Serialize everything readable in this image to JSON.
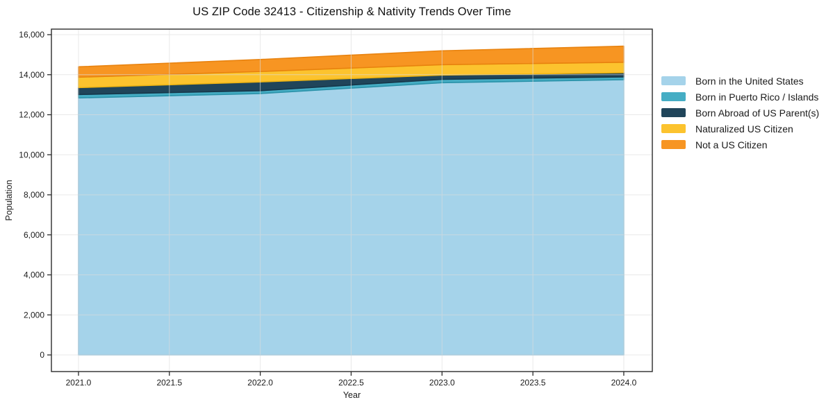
{
  "chart_data": {
    "type": "area",
    "stacked": true,
    "title": "US ZIP Code 32413 - Citizenship & Nativity Trends Over Time",
    "xlabel": "Year",
    "ylabel": "Population",
    "x": [
      2021,
      2022,
      2023,
      2024
    ],
    "series": [
      {
        "name": "Born in the United States",
        "values": [
          12840,
          13060,
          13600,
          13750
        ],
        "fill": "#a5d3ea",
        "edge": "#8ac1dc"
      },
      {
        "name": "Born in Puerto Rico / Islands",
        "values": [
          170,
          140,
          170,
          140
        ],
        "fill": "#45adc4",
        "edge": "#2a92a9"
      },
      {
        "name": "Born Abroad of US Parent(s)",
        "values": [
          345,
          440,
          210,
          210
        ],
        "fill": "#20455a",
        "edge": "#16374a"
      },
      {
        "name": "Naturalized US Citizen",
        "values": [
          520,
          520,
          520,
          520
        ],
        "fill": "#fcc32e",
        "edge": "#eeb413"
      },
      {
        "name": "Not a US Citizen",
        "values": [
          520,
          600,
          695,
          805
        ],
        "fill": "#f79522",
        "edge": "#e8820e"
      }
    ],
    "xlim": [
      2020.851,
      2024.157
    ],
    "ylim": [
      -831,
      16277
    ],
    "xticks": {
      "values": [
        2021.0,
        2021.5,
        2022.0,
        2022.5,
        2023.0,
        2023.5,
        2024.0
      ],
      "labels": [
        "2021.0",
        "2021.5",
        "2022.0",
        "2022.5",
        "2023.0",
        "2023.5",
        "2024.0"
      ]
    },
    "yticks": {
      "values": [
        0,
        2000,
        4000,
        6000,
        8000,
        10000,
        12000,
        14000,
        16000
      ],
      "labels": [
        "0",
        "2,000",
        "4,000",
        "6,000",
        "8,000",
        "10,000",
        "12,000",
        "14,000",
        "16,000"
      ]
    },
    "grid": true,
    "grid_color": "#dcdcdc",
    "spine_color": "#2b2b2b",
    "legend_position": "right-outside"
  }
}
